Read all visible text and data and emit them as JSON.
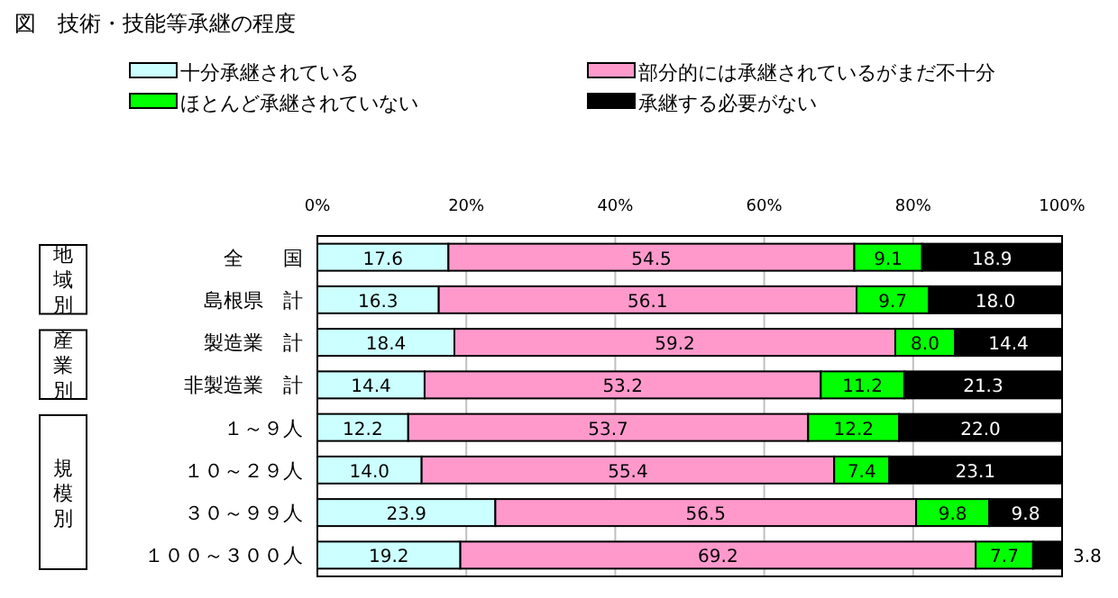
{
  "chart_data": {
    "type": "bar",
    "orientation": "horizontal",
    "stacked": true,
    "title": "図　技術・技能等承継の程度",
    "categories": [
      "全　　国",
      "島根県　計",
      "製造業　計",
      "非製造業　計",
      "１～９人",
      "１０～２９人",
      "３０～９９人",
      "１００～３００人"
    ],
    "series": [
      {
        "name": "十分承継されている",
        "color": "#ccffff",
        "values": [
          17.6,
          16.3,
          18.4,
          14.4,
          12.2,
          14.0,
          23.9,
          19.2
        ],
        "value_labels": [
          "17.6",
          "16.3",
          "18.4",
          "14.4",
          "12.2",
          "14.0",
          "23.9",
          "19.2"
        ]
      },
      {
        "name": "部分的には承継されているがまだ不十分",
        "color": "#ff99cc",
        "values": [
          54.5,
          56.1,
          59.2,
          53.2,
          53.7,
          55.4,
          56.5,
          69.2
        ],
        "value_labels": [
          "54.5",
          "56.1",
          "59.2",
          "53.2",
          "53.7",
          "55.4",
          "56.5",
          "69.2"
        ]
      },
      {
        "name": "ほとんど承継されていない",
        "color": "#00ff00",
        "values": [
          9.1,
          9.7,
          8.0,
          11.2,
          12.2,
          7.4,
          9.8,
          7.7
        ],
        "value_labels": [
          "9.1",
          "9.7",
          "8.0",
          "11.2",
          "12.2",
          "7.4",
          "9.8",
          "7.7"
        ]
      },
      {
        "name": "承継する必要がない",
        "color": "#000000",
        "values": [
          18.9,
          18.0,
          14.4,
          21.3,
          22.0,
          23.1,
          9.8,
          3.8
        ],
        "value_labels": [
          "18.9",
          "18.0",
          "14.4",
          "21.3",
          "22.0",
          "23.1",
          "9.8",
          "3.8"
        ]
      }
    ],
    "xlim": [
      0,
      100
    ],
    "xticks": [
      {
        "value": 0,
        "label": "0%"
      },
      {
        "value": 20,
        "label": "20%"
      },
      {
        "value": 40,
        "label": "40%"
      },
      {
        "value": 60,
        "label": "60%"
      },
      {
        "value": 80,
        "label": "80%"
      },
      {
        "value": 100,
        "label": "100%"
      }
    ],
    "grid": "x",
    "legend": "top",
    "annotations": [
      "地域別",
      "産業別",
      "規模別"
    ]
  }
}
